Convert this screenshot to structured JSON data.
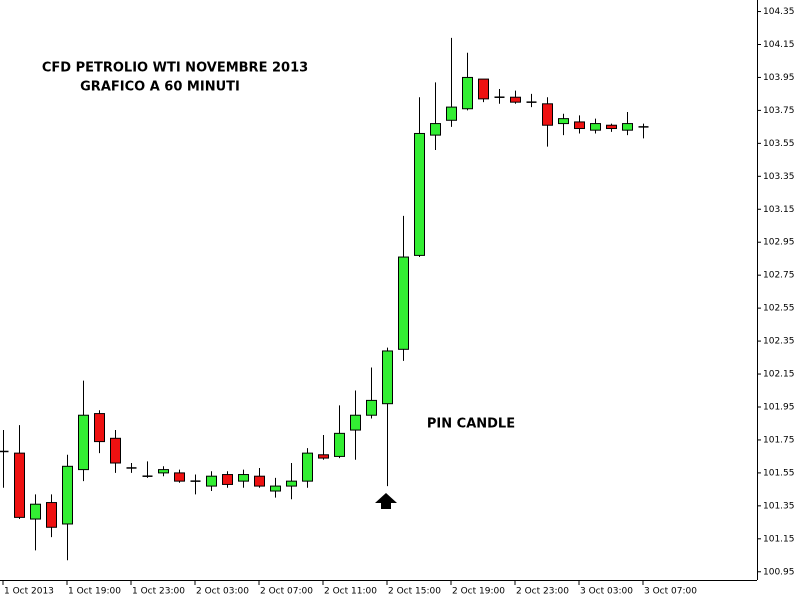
{
  "chart_data": {
    "type": "candlestick",
    "title": "CFD PETROLIO WTI NOVEMBRE 2013",
    "subtitle": "GRAFICO A 60 MINUTI",
    "annotation": "PIN CANDLE",
    "categories": [
      "1 Oct 2013",
      null,
      null,
      null,
      "1 Oct 19:00",
      null,
      null,
      null,
      "1 Oct 23:00",
      null,
      null,
      null,
      "2 Oct 03:00",
      null,
      null,
      null,
      "2 Oct 07:00",
      null,
      null,
      null,
      "2 Oct 11:00",
      null,
      null,
      null,
      "2 Oct 15:00",
      null,
      null,
      null,
      "2 Oct 19:00",
      null,
      null,
      null,
      "2 Oct 23:00",
      null,
      null,
      null,
      "3 Oct 03:00",
      null,
      null,
      null,
      "3 Oct 07:00"
    ],
    "open": [
      101.68,
      101.67,
      101.27,
      101.37,
      101.24,
      101.57,
      101.91,
      101.76,
      101.58,
      101.53,
      101.55,
      101.55,
      101.5,
      101.47,
      101.54,
      101.5,
      101.53,
      101.44,
      101.47,
      101.5,
      101.66,
      101.65,
      101.81,
      101.9,
      101.97,
      102.3,
      102.87,
      103.6,
      103.69,
      103.76,
      103.94,
      103.83,
      103.83,
      103.8,
      103.79,
      103.67,
      103.68,
      103.63,
      103.66,
      103.63,
      103.65
    ],
    "high": [
      101.81,
      101.84,
      101.42,
      101.42,
      101.66,
      102.11,
      101.93,
      101.81,
      101.61,
      101.62,
      101.59,
      101.57,
      101.54,
      101.56,
      101.56,
      101.57,
      101.58,
      101.52,
      101.61,
      101.7,
      101.78,
      101.96,
      102.05,
      102.19,
      102.31,
      103.11,
      103.83,
      103.92,
      104.19,
      104.1,
      103.94,
      103.88,
      103.87,
      103.85,
      103.83,
      103.73,
      103.72,
      103.7,
      103.67,
      103.74,
      103.67
    ],
    "low": [
      101.46,
      101.27,
      101.08,
      101.16,
      101.02,
      101.5,
      101.67,
      101.55,
      101.55,
      101.52,
      101.53,
      101.49,
      101.42,
      101.44,
      101.46,
      101.46,
      101.46,
      101.4,
      101.39,
      101.46,
      101.63,
      101.64,
      101.63,
      101.88,
      101.47,
      102.23,
      102.86,
      103.51,
      103.65,
      103.75,
      103.8,
      103.79,
      103.79,
      103.77,
      103.53,
      103.6,
      103.61,
      103.61,
      103.62,
      103.6,
      103.58
    ],
    "close": [
      101.68,
      101.28,
      101.36,
      101.22,
      101.59,
      101.9,
      101.74,
      101.61,
      101.58,
      101.53,
      101.57,
      101.5,
      101.5,
      101.53,
      101.48,
      101.54,
      101.47,
      101.47,
      101.5,
      101.67,
      101.64,
      101.79,
      101.9,
      101.99,
      102.29,
      102.86,
      103.61,
      103.67,
      103.77,
      103.95,
      103.82,
      103.83,
      103.8,
      103.8,
      103.66,
      103.7,
      103.64,
      103.67,
      103.64,
      103.67,
      103.65
    ],
    "up_color": "#33ee33",
    "down_color": "#ee1111",
    "doji_color": "#000000",
    "ylim": [
      100.9,
      104.42
    ],
    "yticks": [
      100.95,
      101.15,
      101.35,
      101.55,
      101.75,
      101.95,
      102.15,
      102.35,
      102.55,
      102.75,
      102.95,
      103.15,
      103.35,
      103.55,
      103.75,
      103.95,
      104.15,
      104.35
    ],
    "grid": false
  }
}
